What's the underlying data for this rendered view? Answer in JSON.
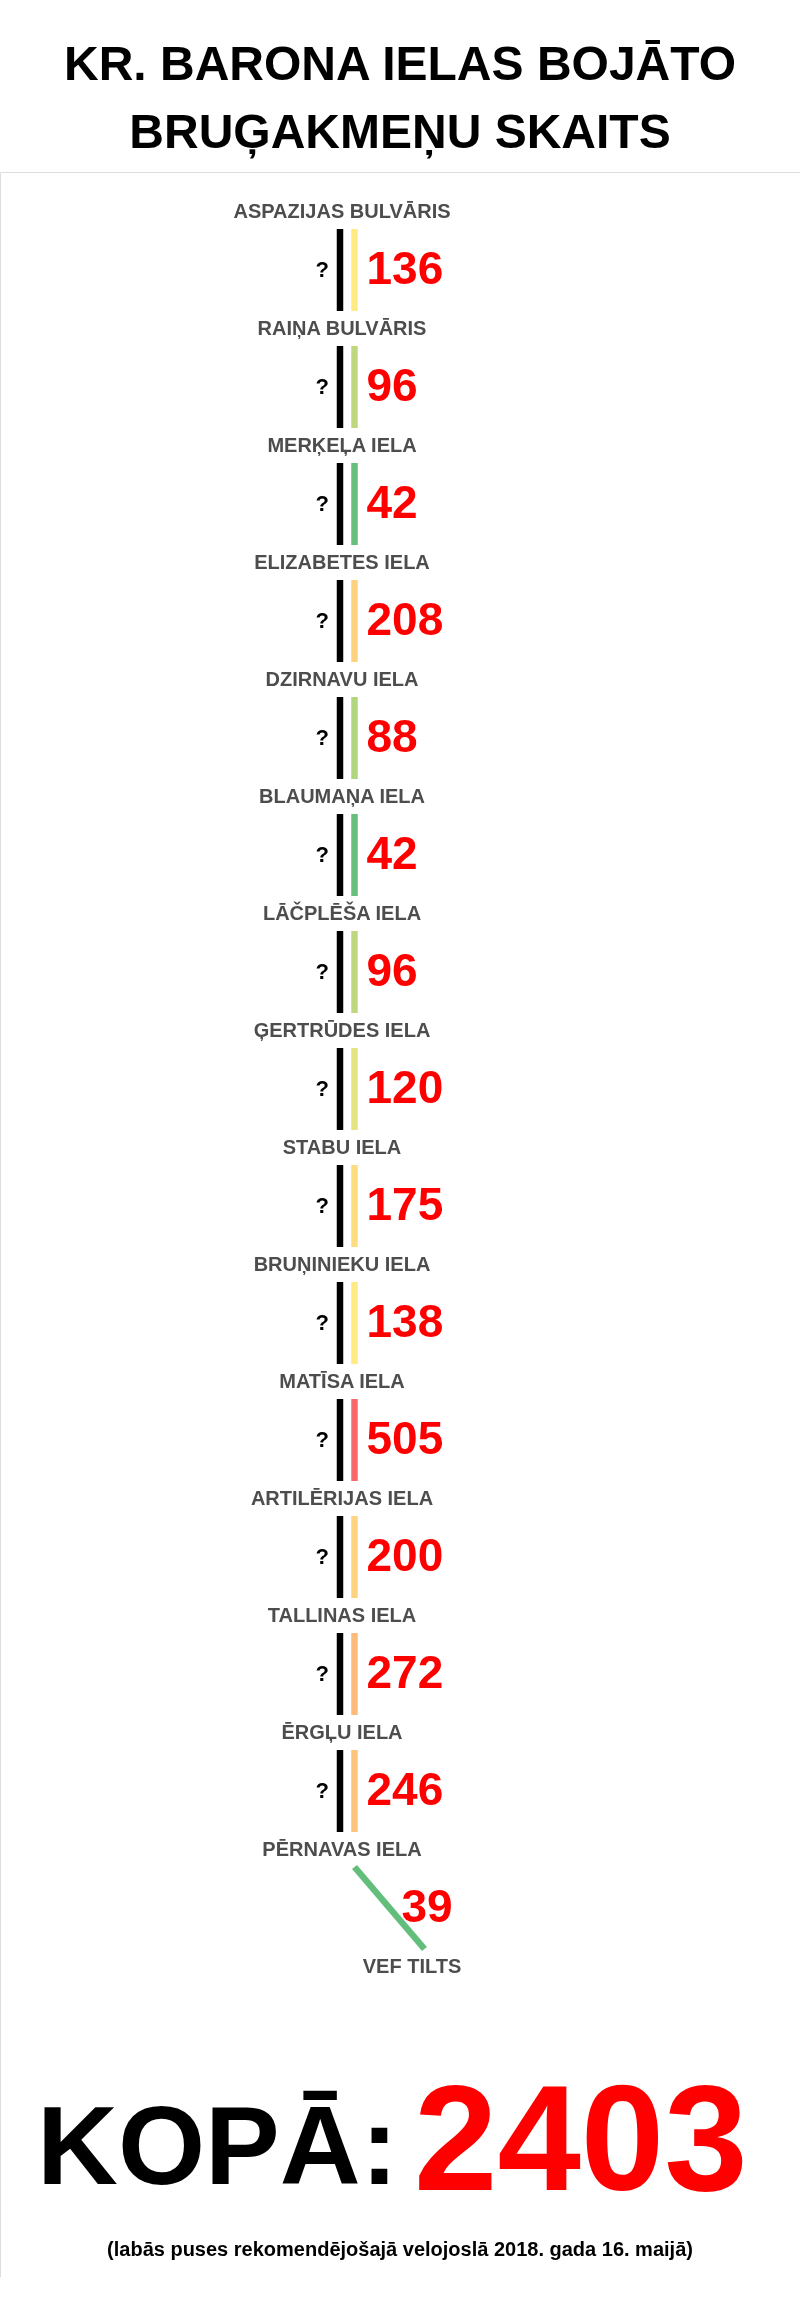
{
  "chart_data": {
    "type": "other",
    "title": "KR. BARONA IELAS BOJĀTO BRUĢAKMEŅU SKAITS",
    "categories": [
      "ASPAZIJAS BULVĀRIS",
      "RAIŅA BULVĀRIS",
      "MERĶEĻA IELA",
      "ELIZABETES IELA",
      "DZIRNAVU IELA",
      "BLAUMAŅA IELA",
      "LĀČPLĒŠA IELA",
      "ĢERTRŪDES IELA",
      "STABU IELA",
      "BRUŅINIEKU IELA",
      "MATĪSA IELA",
      "ARTILĒRIJAS IELA",
      "TALLINAS IELA",
      "ĒRGĻU IELA",
      "PĒRNAVAS IELA",
      "VEF TILTS"
    ],
    "series": [
      {
        "color": "#000000",
        "values": [
          null,
          null,
          null,
          null,
          null,
          null,
          null,
          null,
          null,
          null,
          null,
          null,
          null,
          null,
          null,
          null
        ],
        "value_labels": [
          "?",
          "?",
          "?",
          "?",
          "?",
          "?",
          "?",
          "?",
          "?",
          "?",
          "?",
          "?",
          "?",
          "?",
          null,
          null
        ]
      },
      {
        "values": [
          136,
          96,
          42,
          208,
          88,
          42,
          96,
          120,
          175,
          138,
          505,
          200,
          272,
          246,
          39,
          null
        ],
        "colors": [
          "#ffeb84",
          "#bfd880",
          "#67bf7b",
          "#fed27f",
          "#b2d580",
          "#67bf7b",
          "#bfd880",
          "#e5e482",
          "#fedd81",
          "#ffea84",
          "#f8696b",
          "#fed480",
          "#fcbb7b",
          "#fdc47c",
          "#63be7b",
          null
        ]
      }
    ],
    "data_labels": true,
    "annotations": [
      "KOPĀ:",
      "2403",
      "(labās puses rekomendējošajā velojoslā 2018. gada 16. maijā)"
    ]
  }
}
